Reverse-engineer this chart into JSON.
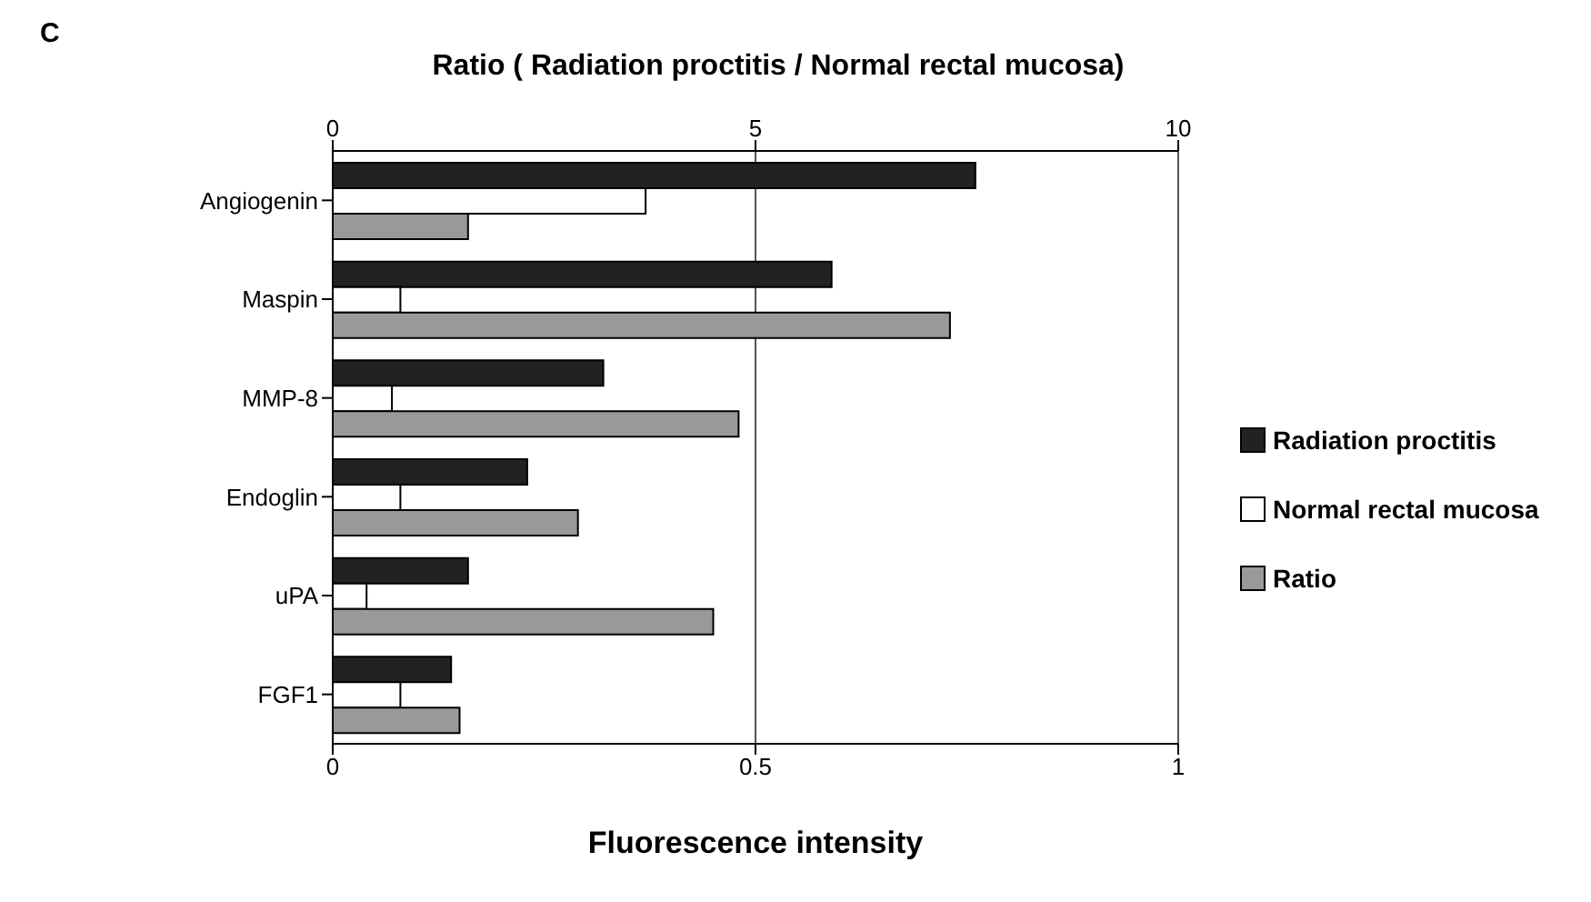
{
  "chart_data": {
    "type": "bar",
    "orientation": "horizontal",
    "title": "Ratio ( Radiation proctitis / Normal rectal mucosa)",
    "xlabel": "Fluorescence intensity",
    "annotations": [
      "C"
    ],
    "categories": [
      "Angiogenin",
      "Maspin",
      "MMP-8",
      "Endoglin",
      "uPA",
      "FGF1"
    ],
    "series": [
      {
        "name": "Radiation proctitis",
        "color": "#222222",
        "values": [
          0.76,
          0.59,
          0.32,
          0.23,
          0.16,
          0.14
        ]
      },
      {
        "name": "Normal rectal mucosa",
        "color": "#ffffff",
        "values": [
          0.37,
          0.08,
          0.07,
          0.08,
          0.04,
          0.08
        ]
      },
      {
        "name": "Ratio",
        "color": "#999999",
        "axis": "x2",
        "values": [
          1.6,
          7.3,
          4.8,
          2.9,
          4.5,
          1.5
        ]
      }
    ],
    "xlim": [
      0,
      1
    ],
    "xticks": [
      0,
      0.5,
      1
    ],
    "x2lim": [
      0,
      10
    ],
    "x2ticks": [
      0,
      5,
      10
    ],
    "grid": "x",
    "legend": "right"
  }
}
